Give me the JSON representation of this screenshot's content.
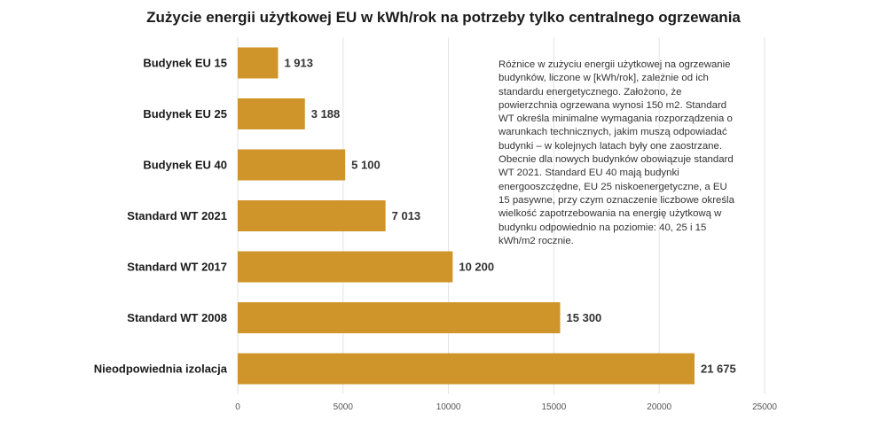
{
  "chart_data": {
    "type": "bar",
    "orientation": "horizontal",
    "title": "Zużycie energii użytkowej EU w kWh/rok na potrzeby tylko centralnego ogrzewania",
    "categories": [
      "Budynek EU 15",
      "Budynek EU 25",
      "Budynek EU 40",
      "Standard WT 2021",
      "Standard WT 2017",
      "Standard WT 2008",
      "Nieodpowiednia izolacja"
    ],
    "values": [
      1913,
      3188,
      5100,
      7013,
      10200,
      15300,
      21675
    ],
    "value_labels": [
      "1 913",
      "3 188",
      "5 100",
      "7 013",
      "10 200",
      "15 300",
      "21 675"
    ],
    "xlim": [
      0,
      25000
    ],
    "xticks": [
      0,
      5000,
      10000,
      15000,
      20000,
      25000
    ],
    "grid": true,
    "legend": "none",
    "bar_color": "#CF952A",
    "annotation": "Różnice w zużyciu energii użytkowej na ogrzewanie budynków, liczone w [kWh/rok], zależnie od ich standardu energetycznego. Założono, że powierzchnia ogrzewana wynosi 150 m2. Standard WT określa minimalne wymagania rozporządzenia o warunkach technicznych, jakim muszą odpowiadać budynki – w kolejnych latach były one zaostrzane. Obecnie dla nowych budynków obowiązuje standard WT 2021. Standard EU 40 mają budynki energooszczędne, EU 25 niskoenergetyczne, a EU 15 pasywne, przy czym oznaczenie liczbowe określa wielkość zapotrzebowania na energię użytkową w budynku odpowiednio na poziomie: 40, 25 i 15 kWh/m2 rocznie."
  }
}
